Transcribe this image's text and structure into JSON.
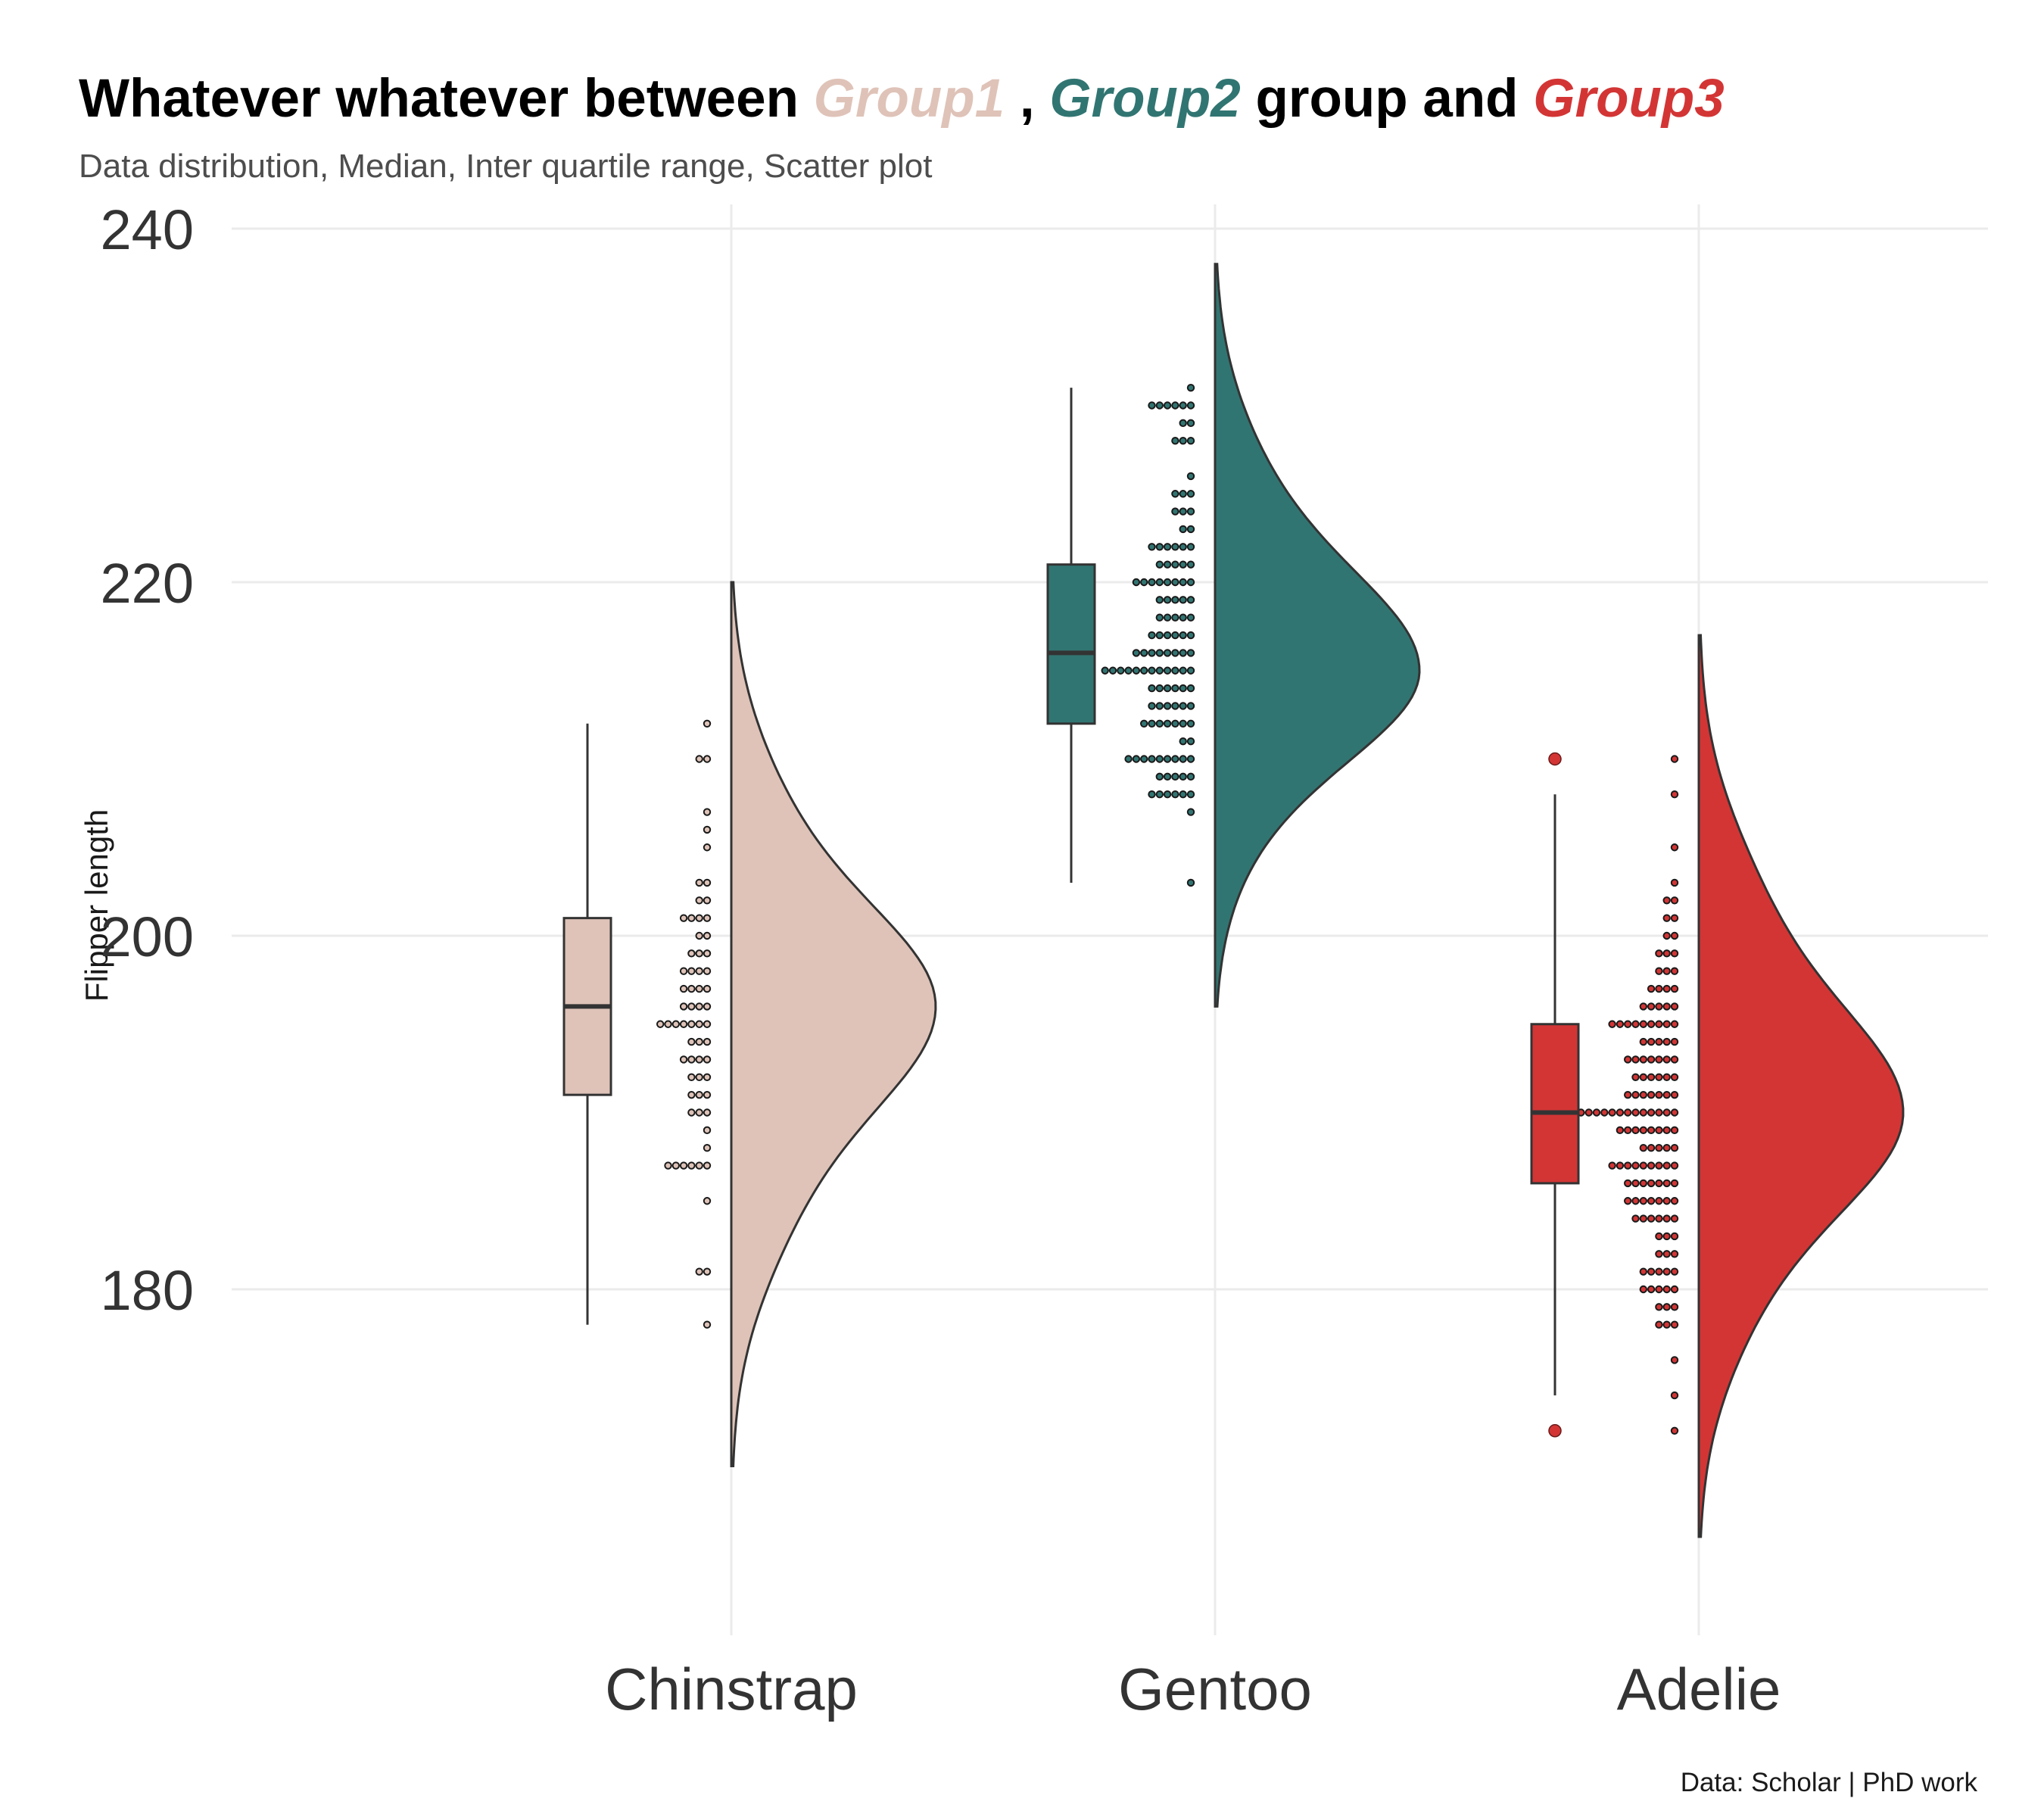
{
  "title": {
    "part1": "Whatever whatever between ",
    "group1": "Group1",
    "sep": " , ",
    "group2": "Group2",
    "part2": " group and ",
    "group3": "Group3"
  },
  "subtitle": "Data distribution, Median, Inter quartile range, Scatter plot",
  "caption": "Data: Scholar | PhD work",
  "colors": {
    "group1": "#dfc3b8",
    "group2": "#317572",
    "group3": "#d33535",
    "grid": "#ebebeb",
    "outline": "#333333"
  },
  "chart_data": {
    "type": "raincloud",
    "ylabel": "Flipper length",
    "ylim": [
      163,
      242
    ],
    "yticks": [
      180,
      200,
      220,
      240
    ],
    "grid": true,
    "legend": "none",
    "categories": [
      "Chinstrap",
      "Gentoo",
      "Adelie"
    ],
    "series": [
      {
        "category": "Chinstrap",
        "color_key": "group1",
        "box": {
          "whisker_low": 178,
          "q1": 191,
          "median": 196,
          "q3": 201,
          "whisker_high": 212,
          "outliers": []
        },
        "density_range": [
          170,
          220
        ],
        "density_peak": 196,
        "dots": [
          [
            178,
            1
          ],
          [
            181,
            2
          ],
          [
            185,
            1
          ],
          [
            187,
            6
          ],
          [
            188,
            1
          ],
          [
            189,
            1
          ],
          [
            190,
            3
          ],
          [
            191,
            3
          ],
          [
            192,
            3
          ],
          [
            193,
            4
          ],
          [
            194,
            3
          ],
          [
            195,
            7
          ],
          [
            196,
            4
          ],
          [
            197,
            4
          ],
          [
            198,
            4
          ],
          [
            199,
            3
          ],
          [
            200,
            2
          ],
          [
            201,
            4
          ],
          [
            202,
            2
          ],
          [
            203,
            2
          ],
          [
            205,
            1
          ],
          [
            206,
            1
          ],
          [
            207,
            1
          ],
          [
            210,
            2
          ],
          [
            212,
            1
          ]
        ]
      },
      {
        "category": "Gentoo",
        "color_key": "group2",
        "box": {
          "whisker_low": 203,
          "q1": 212,
          "median": 216,
          "q3": 221,
          "whisker_high": 231,
          "outliers": []
        },
        "density_range": [
          196,
          238
        ],
        "density_peak": 215,
        "dots": [
          [
            203,
            1
          ],
          [
            207,
            1
          ],
          [
            208,
            6
          ],
          [
            209,
            5
          ],
          [
            210,
            9
          ],
          [
            211,
            2
          ],
          [
            212,
            7
          ],
          [
            213,
            6
          ],
          [
            214,
            6
          ],
          [
            215,
            12
          ],
          [
            216,
            8
          ],
          [
            217,
            6
          ],
          [
            218,
            5
          ],
          [
            219,
            5
          ],
          [
            220,
            8
          ],
          [
            221,
            5
          ],
          [
            222,
            6
          ],
          [
            223,
            2
          ],
          [
            224,
            3
          ],
          [
            225,
            3
          ],
          [
            226,
            1
          ],
          [
            228,
            3
          ],
          [
            229,
            2
          ],
          [
            230,
            6
          ],
          [
            231,
            1
          ]
        ]
      },
      {
        "category": "Adelie",
        "color_key": "group3",
        "box": {
          "whisker_low": 174,
          "q1": 186,
          "median": 190,
          "q3": 195,
          "whisker_high": 208,
          "outliers": [
            172,
            210
          ]
        },
        "density_range": [
          166,
          217
        ],
        "density_peak": 190,
        "dots": [
          [
            172,
            1
          ],
          [
            174,
            1
          ],
          [
            176,
            1
          ],
          [
            178,
            3
          ],
          [
            179,
            3
          ],
          [
            180,
            5
          ],
          [
            181,
            5
          ],
          [
            182,
            3
          ],
          [
            183,
            3
          ],
          [
            184,
            6
          ],
          [
            185,
            7
          ],
          [
            186,
            7
          ],
          [
            187,
            9
          ],
          [
            188,
            5
          ],
          [
            189,
            8
          ],
          [
            190,
            16
          ],
          [
            191,
            7
          ],
          [
            192,
            6
          ],
          [
            193,
            7
          ],
          [
            194,
            5
          ],
          [
            195,
            9
          ],
          [
            196,
            5
          ],
          [
            197,
            4
          ],
          [
            198,
            3
          ],
          [
            199,
            3
          ],
          [
            200,
            2
          ],
          [
            201,
            2
          ],
          [
            202,
            2
          ],
          [
            203,
            1
          ],
          [
            205,
            1
          ],
          [
            208,
            1
          ],
          [
            210,
            1
          ]
        ]
      }
    ]
  }
}
